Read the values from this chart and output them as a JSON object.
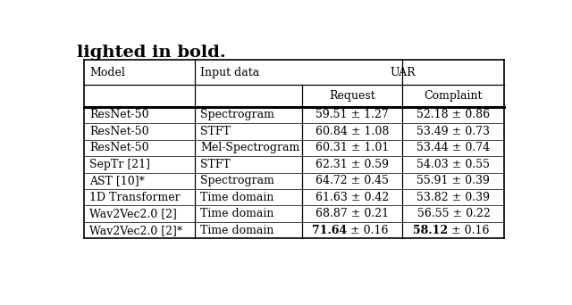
{
  "title_text": "lighted in bold.",
  "rows": [
    [
      "ResNet-50",
      "Spectrogram",
      "59.51 ± 1.27",
      "52.18 ± 0.86"
    ],
    [
      "ResNet-50",
      "STFT",
      "60.84 ± 1.08",
      "53.49 ± 0.73"
    ],
    [
      "ResNet-50",
      "Mel-Spectrogram",
      "60.31 ± 1.01",
      "53.44 ± 0.74"
    ],
    [
      "SepTr [21]",
      "STFT",
      "62.31 ± 0.59",
      "54.03 ± 0.55"
    ],
    [
      "AST [10]*",
      "Spectrogram",
      "64.72 ± 0.45",
      "55.91 ± 0.39"
    ],
    [
      "1D Transformer",
      "Time domain",
      "61.63 ± 0.42",
      "53.82 ± 0.39"
    ],
    [
      "Wav2Vec2.0 [2]",
      "Time domain",
      "68.87 ± 0.21",
      "56.55 ± 0.22"
    ],
    [
      "Wav2Vec2.0 [2]*",
      "Time domain",
      "71.64 ± 0.16",
      "58.12 ± 0.16"
    ]
  ],
  "bold_row_index": 7,
  "bold_cols": [
    2,
    3
  ],
  "background_color": "#ffffff",
  "font_family": "serif",
  "font_size": 9.0,
  "title_font_size": 14.0
}
